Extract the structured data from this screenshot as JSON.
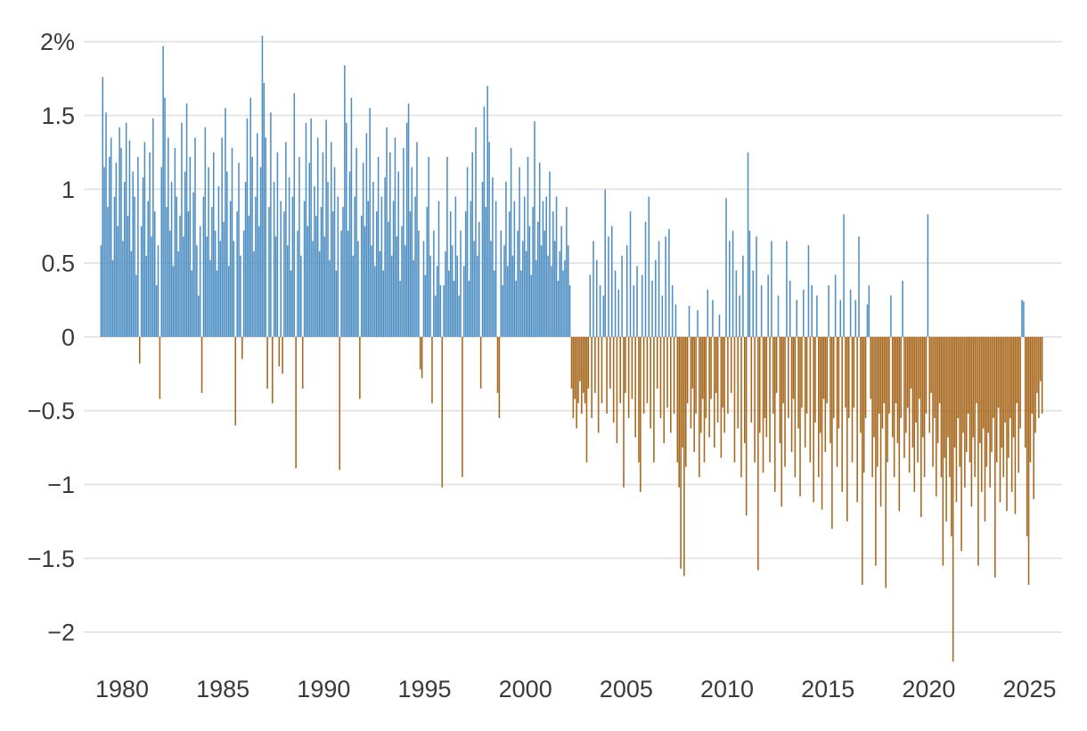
{
  "chart_data": {
    "type": "bar",
    "title": "",
    "subtitle": "",
    "xlabel": "",
    "ylabel": "",
    "unit": "%",
    "frequency": "monthly",
    "x_start": {
      "year": 1979,
      "month": 1
    },
    "x_end": {
      "year": 2025,
      "month": 9
    },
    "ylim": [
      -2.35,
      2.1
    ],
    "xlim": [
      1978.9,
      2026.6
    ],
    "grid": true,
    "legend": "none",
    "colors": {
      "positive": "#4E8FC3",
      "negative": "#A6661B",
      "grid": "#E5E5E5",
      "label": "#3A3A3A",
      "background": "#FFFFFF"
    },
    "yticks": [
      {
        "value": 2,
        "label": "2%"
      },
      {
        "value": 1.5,
        "label": "1.5"
      },
      {
        "value": 1,
        "label": "1"
      },
      {
        "value": 0.5,
        "label": "0.5"
      },
      {
        "value": 0,
        "label": "0"
      },
      {
        "value": -0.5,
        "label": "−0.5"
      },
      {
        "value": -1,
        "label": "−1"
      },
      {
        "value": -1.5,
        "label": "−1.5"
      },
      {
        "value": -2,
        "label": "−2"
      }
    ],
    "xticks": [
      {
        "value": 1980,
        "label": "1980"
      },
      {
        "value": 1985,
        "label": "1985"
      },
      {
        "value": 1990,
        "label": "1990"
      },
      {
        "value": 1995,
        "label": "1995"
      },
      {
        "value": 2000,
        "label": "2000"
      },
      {
        "value": 2005,
        "label": "2005"
      },
      {
        "value": 2010,
        "label": "2010"
      },
      {
        "value": 2015,
        "label": "2015"
      },
      {
        "value": 2020,
        "label": "2020"
      },
      {
        "value": 2025,
        "label": "2025"
      }
    ],
    "values": [
      0.62,
      1.76,
      1.15,
      1.52,
      0.88,
      1.22,
      1.35,
      0.52,
      0.95,
      1.18,
      0.75,
      1.42,
      1.28,
      0.65,
      1.05,
      1.45,
      0.82,
      1.33,
      0.58,
      1.12,
      0.95,
      0.42,
      1.22,
      -0.18,
      0.75,
      1.08,
      1.32,
      0.55,
      0.92,
      1.25,
      0.68,
      1.48,
      0.85,
      0.35,
      0.62,
      -0.42,
      1.15,
      1.97,
      1.62,
      0.88,
      1.35,
      0.72,
      1.05,
      0.48,
      1.28,
      0.95,
      0.58,
      0.82,
      1.45,
      0.68,
      1.12,
      1.58,
      0.85,
      1.22,
      0.45,
      0.98,
      1.35,
      0.62,
      0.28,
      0.75,
      -0.38,
      0.95,
      1.42,
      0.68,
      1.15,
      0.52,
      0.88,
      1.25,
      0.72,
      0.45,
      1.02,
      0.65,
      1.35,
      0.78,
      1.55,
      1.12,
      0.48,
      0.92,
      1.28,
      0.65,
      -0.6,
      0.85,
      1.18,
      0.55,
      -0.15,
      0.72,
      1.05,
      1.48,
      0.82,
      1.62,
      1.22,
      0.58,
      0.95,
      1.38,
      0.75,
      1.15,
      2.04,
      1.72,
      1.35,
      -0.35,
      0.88,
      1.52,
      -0.45,
      1.05,
      0.68,
      1.25,
      -0.2,
      0.92,
      -0.25,
      0.85,
      1.32,
      0.62,
      1.08,
      0.45,
      0.95,
      1.65,
      -0.89,
      0.72,
      1.22,
      0.55,
      -0.35,
      0.92,
      1.45,
      0.75,
      1.18,
      1.48,
      0.65,
      1.02,
      0.82,
      1.35,
      0.58,
      0.88,
      1.25,
      0.68,
      1.47,
      1.05,
      0.52,
      1.32,
      0.85,
      1.15,
      0.45,
      0.95,
      -0.9,
      0.72,
      0.88,
      1.84,
      1.45,
      0.72,
      1.12,
      1.62,
      0.55,
      0.95,
      1.28,
      0.65,
      -0.42,
      0.82,
      1.18,
      0.75,
      1.38,
      0.92,
      1.55,
      0.62,
      1.05,
      0.48,
      0.85,
      1.22,
      0.58,
      0.95,
      0.45,
      1.08,
      1.42,
      0.78,
      1.25,
      0.55,
      0.92,
      1.35,
      0.68,
      1.12,
      0.38,
      0.75,
      1.28,
      0.62,
      1.45,
      1.58,
      0.85,
      1.15,
      0.52,
      0.95,
      1.32,
      0.72,
      -0.22,
      -0.28,
      0.65,
      0.42,
      0.88,
      1.22,
      0.55,
      -0.45,
      0.72,
      0.28,
      0.48,
      0.92,
      0.35,
      -1.02,
      0.35,
      0.58,
      1.22,
      0.45,
      0.85,
      0.62,
      0.38,
      0.95,
      0.55,
      0.28,
      0.72,
      -0.95,
      0.48,
      0.85,
      1.15,
      0.38,
      0.92,
      1.25,
      0.65,
      1.42,
      0.55,
      0.78,
      -0.35,
      1.05,
      1.56,
      0.88,
      1.7,
      1.32,
      0.65,
      1.08,
      0.45,
      0.92,
      -0.38,
      -0.55,
      0.72,
      0.35,
      0.62,
      1.05,
      0.48,
      0.85,
      1.28,
      0.55,
      0.92,
      0.38,
      0.72,
      1.15,
      0.45,
      0.65,
      0.95,
      0.58,
      1.22,
      0.75,
      0.42,
      0.88,
      1.46,
      0.52,
      0.78,
      1.18,
      0.62,
      0.92,
      0.72,
      0.95,
      0.55,
      1.12,
      0.48,
      0.85,
      0.65,
      0.95,
      0.38,
      0.58,
      0.75,
      0.45,
      0.52,
      0.88,
      0.62,
      0.35,
      -0.35,
      -0.55,
      -0.42,
      -0.62,
      -0.45,
      -0.3,
      -0.52,
      -0.38,
      -0.45,
      -0.85,
      -0.35,
      0.42,
      -0.55,
      0.65,
      -0.38,
      0.52,
      -0.65,
      0.35,
      -0.45,
      0.28,
      1.0,
      -0.52,
      0.68,
      -0.35,
      0.75,
      -0.58,
      0.45,
      -0.72,
      0.32,
      -0.45,
      0.55,
      -1.02,
      -0.38,
      0.62,
      -0.55,
      0.85,
      -0.42,
      0.35,
      -0.68,
      0.48,
      -0.85,
      -1.05,
      0.42,
      -0.52,
      0.78,
      -0.45,
      0.95,
      -0.62,
      0.38,
      -0.85,
      0.52,
      -0.35,
      0.65,
      -0.55,
      0.28,
      -0.72,
      0.68,
      -0.48,
      0.73,
      -0.65,
      0.35,
      -0.52,
      0.22,
      -0.85,
      -1.02,
      -1.57,
      -0.75,
      -1.62,
      -0.88,
      -0.45,
      0.21,
      -0.62,
      -0.35,
      -0.78,
      -0.52,
      0.18,
      -0.95,
      -0.65,
      -0.42,
      -0.85,
      -0.55,
      0.32,
      -0.68,
      -0.42,
      0.25,
      -0.75,
      -0.38,
      -0.58,
      0.15,
      -0.82,
      -0.48,
      -0.65,
      0.94,
      -0.52,
      0.65,
      -0.38,
      0.72,
      -0.85,
      0.45,
      -0.62,
      0.28,
      -0.95,
      0.55,
      -0.72,
      -1.21,
      1.25,
      0.72,
      -0.58,
      0.45,
      -0.85,
      0.68,
      -1.58,
      -0.65,
      0.35,
      -0.92,
      -0.55,
      -0.68,
      0.42,
      -0.85,
      0.65,
      -0.52,
      -1.05,
      -0.38,
      0.28,
      -0.72,
      -1.15,
      -0.45,
      -0.88,
      0.65,
      -0.55,
      0.38,
      -0.78,
      -0.42,
      -0.95,
      0.25,
      -0.62,
      -1.08,
      -0.48,
      0.32,
      -0.75,
      -0.52,
      0.62,
      -0.85,
      0.35,
      -1.12,
      -0.58,
      0.28,
      -0.95,
      -0.65,
      -1.17,
      -0.42,
      -0.78,
      -0.45,
      0.35,
      -0.72,
      -1.3,
      -0.55,
      0.42,
      -0.88,
      -0.62,
      0.25,
      -1.05,
      0.83,
      -0.48,
      -1.25,
      -0.55,
      0.32,
      -0.85,
      -0.48,
      0.25,
      -1.12,
      0.68,
      -0.65,
      -1.68,
      -0.92,
      -0.55,
      0.22,
      0.35,
      -0.42,
      -0.95,
      -0.68,
      -1.55,
      -0.88,
      -0.52,
      -1.15,
      -0.62,
      -0.45,
      -1.7,
      -0.85,
      -0.52,
      0.28,
      -0.68,
      -0.95,
      -0.45,
      -0.72,
      -1.18,
      -0.55,
      0.38,
      -0.82,
      -0.65,
      -0.48,
      -0.92,
      -0.35,
      -0.75,
      -1.05,
      -0.58,
      -0.85,
      -0.42,
      -1.22,
      -0.68,
      -0.95,
      -0.52,
      0.83,
      -0.65,
      -0.38,
      -0.88,
      -0.55,
      -1.08,
      -0.72,
      -0.45,
      -0.95,
      -1.55,
      -0.82,
      -1.25,
      -0.68,
      -0.95,
      -1.35,
      -2.2,
      -0.75,
      -1.12,
      -0.55,
      -0.88,
      -1.45,
      -0.65,
      -1.02,
      -0.78,
      -0.52,
      -0.85,
      -1.15,
      -0.68,
      -0.95,
      -0.45,
      -1.55,
      -0.72,
      -1.05,
      -0.62,
      -1.25,
      -0.88,
      -0.65,
      -1.02,
      -0.78,
      -0.55,
      -1.63,
      -0.85,
      -0.48,
      -1.12,
      -0.75,
      -0.95,
      -0.58,
      -1.18,
      -0.82,
      -0.55,
      -1.05,
      -0.68,
      -1.2,
      -0.45,
      -0.92,
      -0.62,
      0.25,
      0.24,
      -0.75,
      -1.35,
      -1.68,
      -0.85,
      -0.52,
      -1.1,
      -0.65,
      -0.38,
      -0.55,
      -0.3,
      -0.52
    ]
  }
}
